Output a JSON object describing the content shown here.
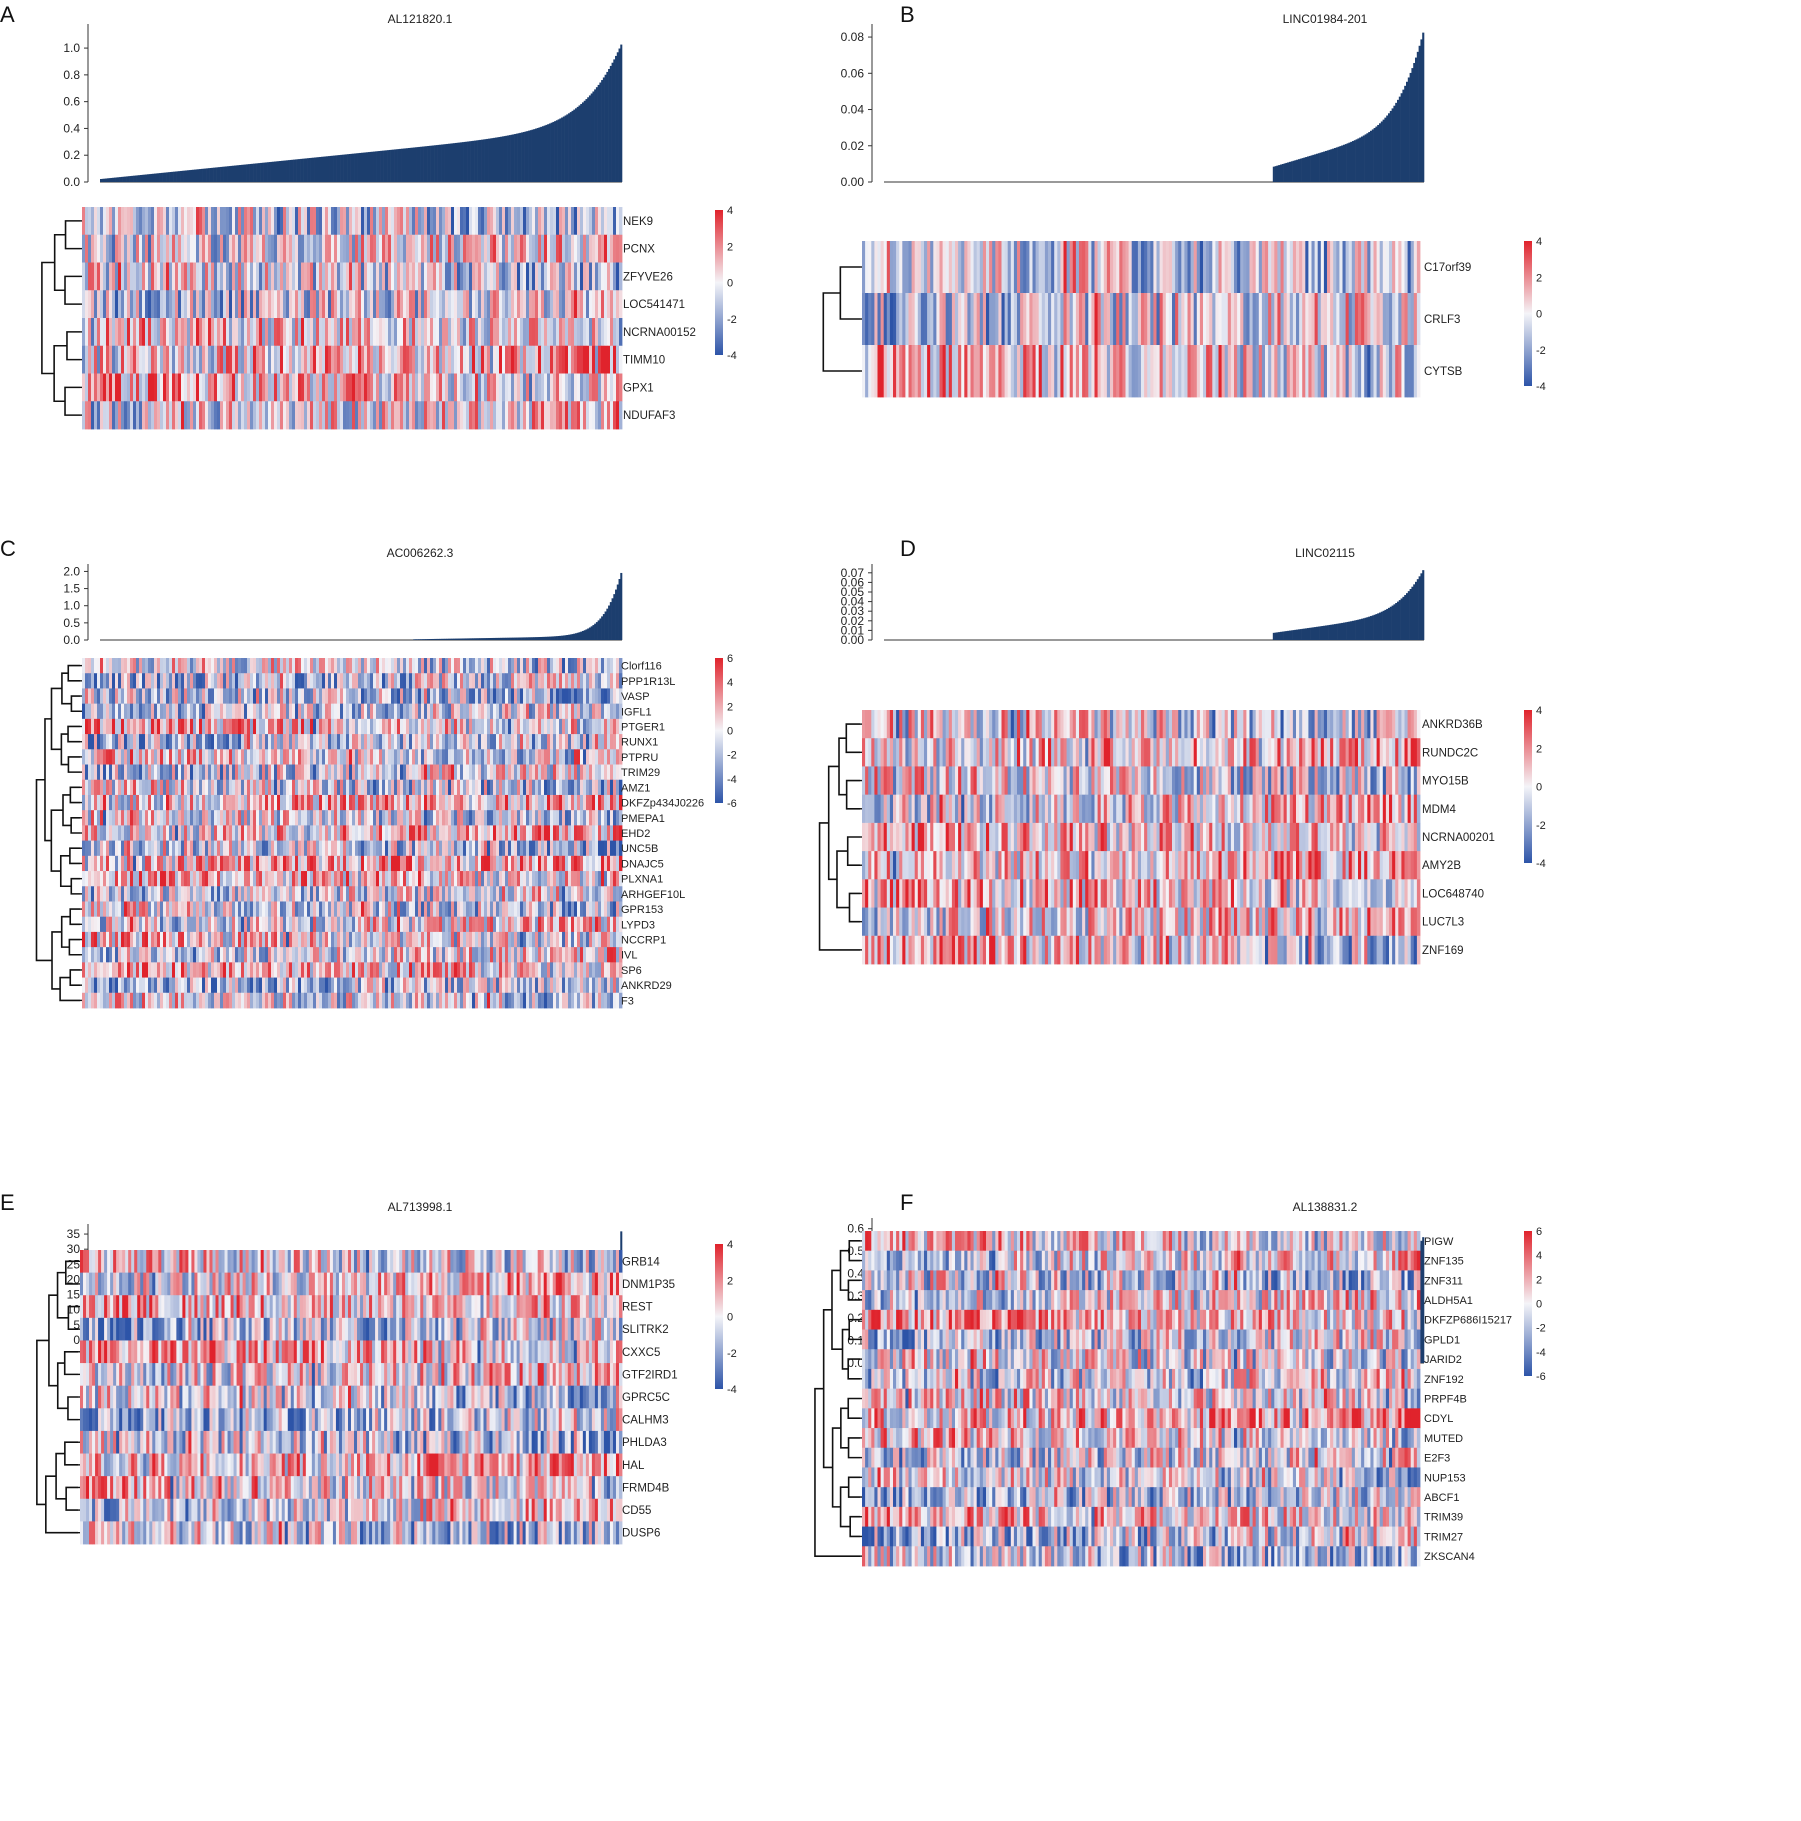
{
  "colors": {
    "bar": "#1c3e6e",
    "low": "#2d54a8",
    "mid": "#f4f4f8",
    "high": "#e0232c",
    "tree": "#111111"
  },
  "chart_data": [
    {
      "letter": "A",
      "type": "heatmap",
      "title": "AL121820.1",
      "bar_profile": "smooth",
      "bar_ylim": [
        0,
        1.15
      ],
      "bar_ticks": [
        "0.0",
        "0.2",
        "0.4",
        "0.6",
        "0.8",
        "1.0"
      ],
      "genes": [
        "NEK9",
        "PCNX",
        "ZFYVE26",
        "LOC541471",
        "NCRNA00152",
        "TIMM10",
        "GPX1",
        "NDUFAF3"
      ],
      "colorbar_ticks": [
        "4",
        "2",
        "0",
        "-2",
        "-4"
      ]
    },
    {
      "letter": "B",
      "type": "heatmap",
      "title": "LINC01984-201",
      "bar_profile": "flat_then_rise",
      "bar_ylim": [
        0,
        0.085
      ],
      "bar_ticks": [
        "0.00",
        "0.02",
        "0.04",
        "0.06",
        "0.08"
      ],
      "genes": [
        "C17orf39",
        "CRLF3",
        "CYTSB"
      ],
      "colorbar_ticks": [
        "4",
        "2",
        "0",
        "-2",
        "-4"
      ]
    },
    {
      "letter": "C",
      "type": "heatmap",
      "title": "AC006262.3",
      "bar_profile": "late_rise",
      "bar_ylim": [
        0,
        2.1
      ],
      "bar_ticks": [
        "0.0",
        "0.5",
        "1.0",
        "1.5",
        "2.0"
      ],
      "genes": [
        "Clorf116",
        "PPP1R13L",
        "VASP",
        "IGFL1",
        "PTGER1",
        "RUNX1",
        "PTPRU",
        "TRIM29",
        "AMZ1",
        "DKFZp434J0226",
        "PMEPA1",
        "EHD2",
        "UNC5B",
        "DNAJC5",
        "PLXNA1",
        "ARHGEF10L",
        "GPR153",
        "LYPD3",
        "NCCRP1",
        "IVL",
        "SP6",
        "ANKRD29",
        "F3"
      ],
      "colorbar_ticks": [
        "6",
        "4",
        "2",
        "0",
        "-2",
        "-4",
        "-6"
      ]
    },
    {
      "letter": "D",
      "type": "heatmap",
      "title": "LINC02115",
      "bar_profile": "flat_then_rise",
      "bar_ylim": [
        0,
        0.075
      ],
      "bar_ticks": [
        "0.00",
        "0.01",
        "0.02",
        "0.03",
        "0.04",
        "0.05",
        "0.06",
        "0.07"
      ],
      "genes": [
        "ANKRD36B",
        "RUNDC2C",
        "MYO15B",
        "MDM4",
        "NCRNA00201",
        "AMY2B",
        "LOC648740",
        "LUC7L3",
        "ZNF169"
      ],
      "colorbar_ticks": [
        "4",
        "2",
        "0",
        "-2",
        "-4"
      ]
    },
    {
      "letter": "E",
      "type": "heatmap",
      "title": "AL713998.1",
      "bar_profile": "spike",
      "bar_ylim": [
        0,
        37
      ],
      "bar_ticks": [
        "0",
        "5",
        "10",
        "15",
        "20",
        "25",
        "30",
        "35"
      ],
      "genes": [
        "GRB14",
        "DNM1P35",
        "REST",
        "SLITRK2",
        "CXXC5",
        "GTF2IRD1",
        "GPRC5C",
        "CALHM3",
        "PHLDA3",
        "HAL",
        "FRMD4B",
        "CD55",
        "DUSP6"
      ],
      "colorbar_ticks": [
        "4",
        "2",
        "0",
        "-2",
        "-4"
      ]
    },
    {
      "letter": "F",
      "type": "heatmap",
      "title": "AL138831.2",
      "bar_profile": "smooth",
      "bar_ylim": [
        0,
        0.63
      ],
      "bar_ticks": [
        "0.0",
        "0.1",
        "0.2",
        "0.3",
        "0.4",
        "0.5",
        "0.6"
      ],
      "genes": [
        "PIGW",
        "ZNF135",
        "ZNF311",
        "ALDH5A1",
        "DKFZP686I15217",
        "GPLD1",
        "JARID2",
        "ZNF192",
        "PRPF4B",
        "CDYL",
        "MUTED",
        "E2F3",
        "NUP153",
        "ABCF1",
        "TRIM39",
        "TRIM27",
        "ZKSCAN4"
      ],
      "colorbar_ticks": [
        "6",
        "4",
        "2",
        "0",
        "-2",
        "-4",
        "-6"
      ]
    }
  ]
}
